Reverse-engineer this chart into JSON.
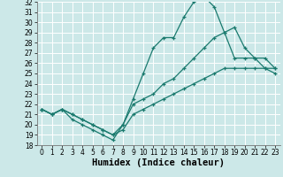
{
  "xlabel": "Humidex (Indice chaleur)",
  "xlim": [
    -0.5,
    23.5
  ],
  "ylim": [
    18,
    32
  ],
  "xticks": [
    0,
    1,
    2,
    3,
    4,
    5,
    6,
    7,
    8,
    9,
    10,
    11,
    12,
    13,
    14,
    15,
    16,
    17,
    18,
    19,
    20,
    21,
    22,
    23
  ],
  "yticks": [
    18,
    19,
    20,
    21,
    22,
    23,
    24,
    25,
    26,
    27,
    28,
    29,
    30,
    31,
    32
  ],
  "bg_color": "#cce8e8",
  "line_color": "#1a7a6e",
  "grid_color": "#ffffff",
  "line1_x": [
    0,
    1,
    2,
    3,
    4,
    5,
    6,
    7,
    8,
    9,
    10,
    11,
    12,
    13,
    14,
    15,
    16,
    17,
    18,
    19,
    20,
    21,
    22,
    23
  ],
  "line1_y": [
    21.5,
    21.0,
    21.5,
    20.5,
    20.0,
    19.5,
    19.0,
    18.5,
    20.0,
    22.5,
    25.0,
    27.5,
    28.5,
    28.5,
    30.5,
    32.0,
    32.5,
    31.5,
    29.0,
    26.5,
    26.5,
    26.5,
    25.5,
    25.0
  ],
  "line2_x": [
    0,
    1,
    2,
    3,
    4,
    5,
    6,
    7,
    8,
    9,
    10,
    11,
    12,
    13,
    14,
    15,
    16,
    17,
    18,
    19,
    20,
    21,
    22,
    23
  ],
  "line2_y": [
    21.5,
    21.0,
    21.5,
    21.0,
    20.5,
    20.0,
    19.5,
    19.0,
    19.5,
    21.0,
    21.5,
    22.0,
    22.5,
    23.0,
    23.5,
    24.0,
    24.5,
    25.0,
    25.5,
    25.5,
    25.5,
    25.5,
    25.5,
    25.5
  ],
  "line3_x": [
    0,
    1,
    2,
    3,
    4,
    5,
    6,
    7,
    8,
    9,
    10,
    11,
    12,
    13,
    14,
    15,
    16,
    17,
    18,
    19,
    20,
    21,
    22,
    23
  ],
  "line3_y": [
    21.5,
    21.0,
    21.5,
    21.0,
    20.5,
    20.0,
    19.5,
    19.0,
    20.0,
    22.0,
    22.5,
    23.0,
    24.0,
    24.5,
    25.5,
    26.5,
    27.5,
    28.5,
    29.0,
    29.5,
    27.5,
    26.5,
    26.5,
    25.5
  ],
  "tick_fontsize": 5.5,
  "label_fontsize": 7.5
}
